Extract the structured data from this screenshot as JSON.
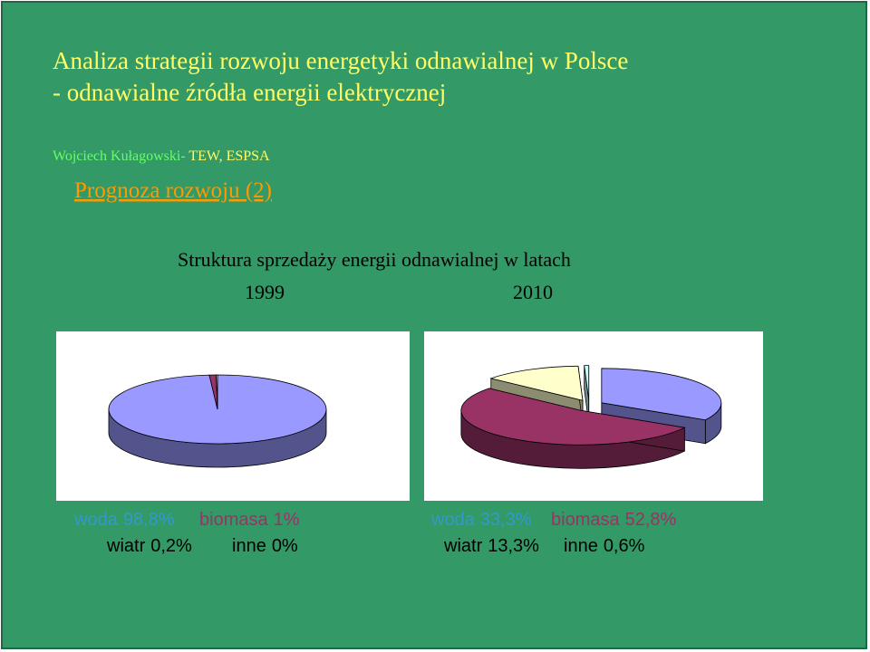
{
  "slide": {
    "title_line1": "Analiza strategii rozwoju energetyki odnawialnej w Polsce",
    "title_line2": "- odnawialne źródła energii elektrycznej",
    "author": "Wojciech Kułagowski-",
    "affiliation": " TEW, ESPSA",
    "section": "Prognoza rozwoju (2)",
    "heading": "Struktura sprzedaży energii odnawialnej w latach"
  },
  "chart_data": [
    {
      "type": "pie",
      "title": "1999",
      "categories": [
        "woda",
        "biomasa",
        "wiatr",
        "inne"
      ],
      "values": [
        98.8,
        1,
        0.2,
        0
      ],
      "value_labels": [
        "98,8%",
        "1%",
        "0,2%",
        "0%"
      ],
      "colors": [
        "#9999ff",
        "#993366",
        "#ffffcc",
        "#ccffff"
      ]
    },
    {
      "type": "pie",
      "title": "2010",
      "categories": [
        "woda",
        "biomasa",
        "wiatr",
        "inne"
      ],
      "values": [
        33.3,
        52.8,
        13.3,
        0.6
      ],
      "value_labels": [
        "33,3%",
        "52,8%",
        "13,3%",
        "0,6%"
      ],
      "colors": [
        "#9999ff",
        "#993366",
        "#ffffcc",
        "#ccffff"
      ]
    }
  ]
}
